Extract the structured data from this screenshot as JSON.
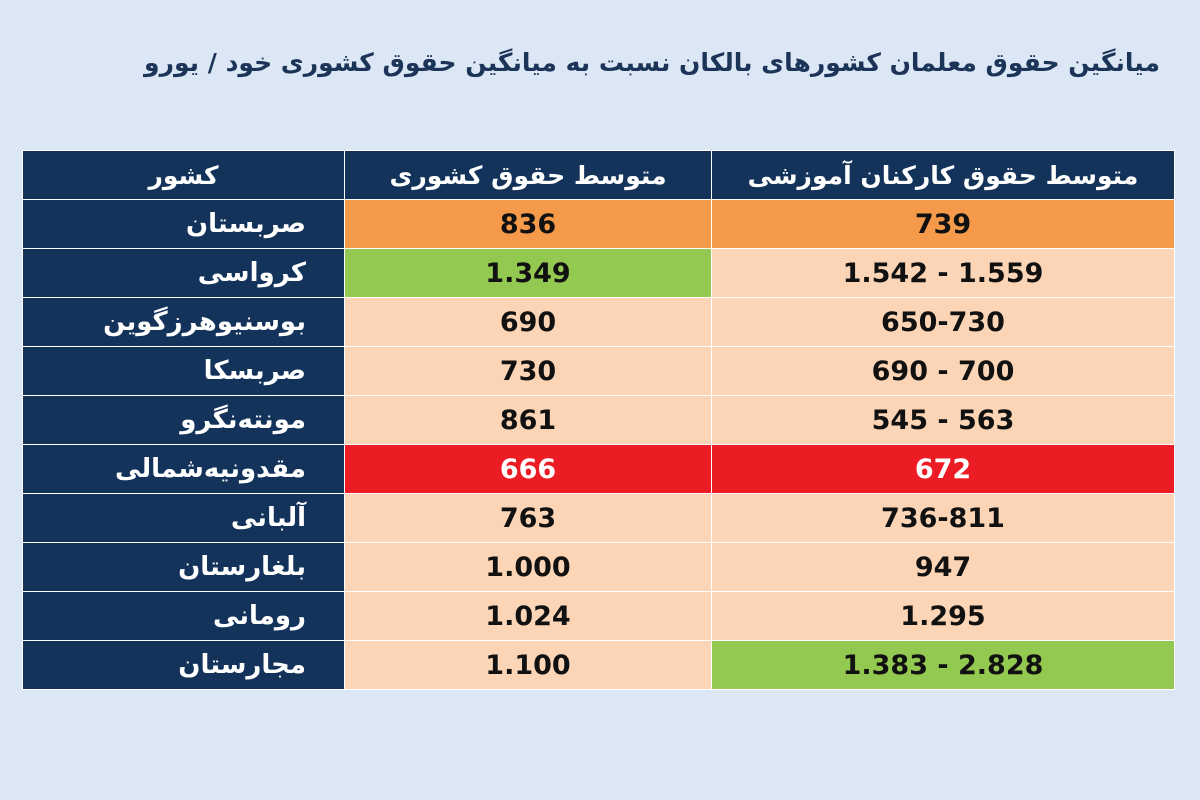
{
  "title": "میانگین حقوق معلمان کشورهای بالکان نسبت به میانگین حقوق کشوری خود / یورو",
  "headers": {
    "country": "کشور",
    "national_avg": "متوسط حقوق کشوری",
    "teacher_avg": "متوسط حقوق کارکنان آموزشی"
  },
  "rows": [
    {
      "country": "صربستان",
      "national": "836",
      "teacher": "739",
      "national_color": "orange",
      "teacher_color": "orange"
    },
    {
      "country": "کرواسی",
      "national": "1.349",
      "teacher": "1.542 - 1.559",
      "national_color": "green",
      "teacher_color": "peach"
    },
    {
      "country": "بوسنیوهرزگوین",
      "national": "690",
      "teacher": "650-730",
      "national_color": "peach",
      "teacher_color": "peach"
    },
    {
      "country": "صربسکا",
      "national": "730",
      "teacher": "690 - 700",
      "national_color": "peach",
      "teacher_color": "peach"
    },
    {
      "country": "مونته‌نگرو",
      "national": "861",
      "teacher": "545 - 563",
      "national_color": "peach",
      "teacher_color": "peach"
    },
    {
      "country": "مقدونیه‌شمالی",
      "national": "666",
      "teacher": "672",
      "national_color": "red",
      "teacher_color": "red"
    },
    {
      "country": "آلبانی",
      "national": "763",
      "teacher": "736-811",
      "national_color": "peach",
      "teacher_color": "peach"
    },
    {
      "country": "بلغارستان",
      "national": "1.000",
      "teacher": "947",
      "national_color": "peach",
      "teacher_color": "peach"
    },
    {
      "country": "رومانی",
      "national": "1.024",
      "teacher": "1.295",
      "national_color": "peach",
      "teacher_color": "peach"
    },
    {
      "country": "مجارستان",
      "national": "1.100",
      "teacher": "1.383 - 2.828",
      "national_color": "peach",
      "teacher_color": "green"
    }
  ],
  "colors": {
    "background": "#dce7f5",
    "header_navy": "#14335b",
    "peach": "#fbd5b5",
    "orange": "#f59a4a",
    "green": "#93c950",
    "red": "#ec1c24"
  }
}
